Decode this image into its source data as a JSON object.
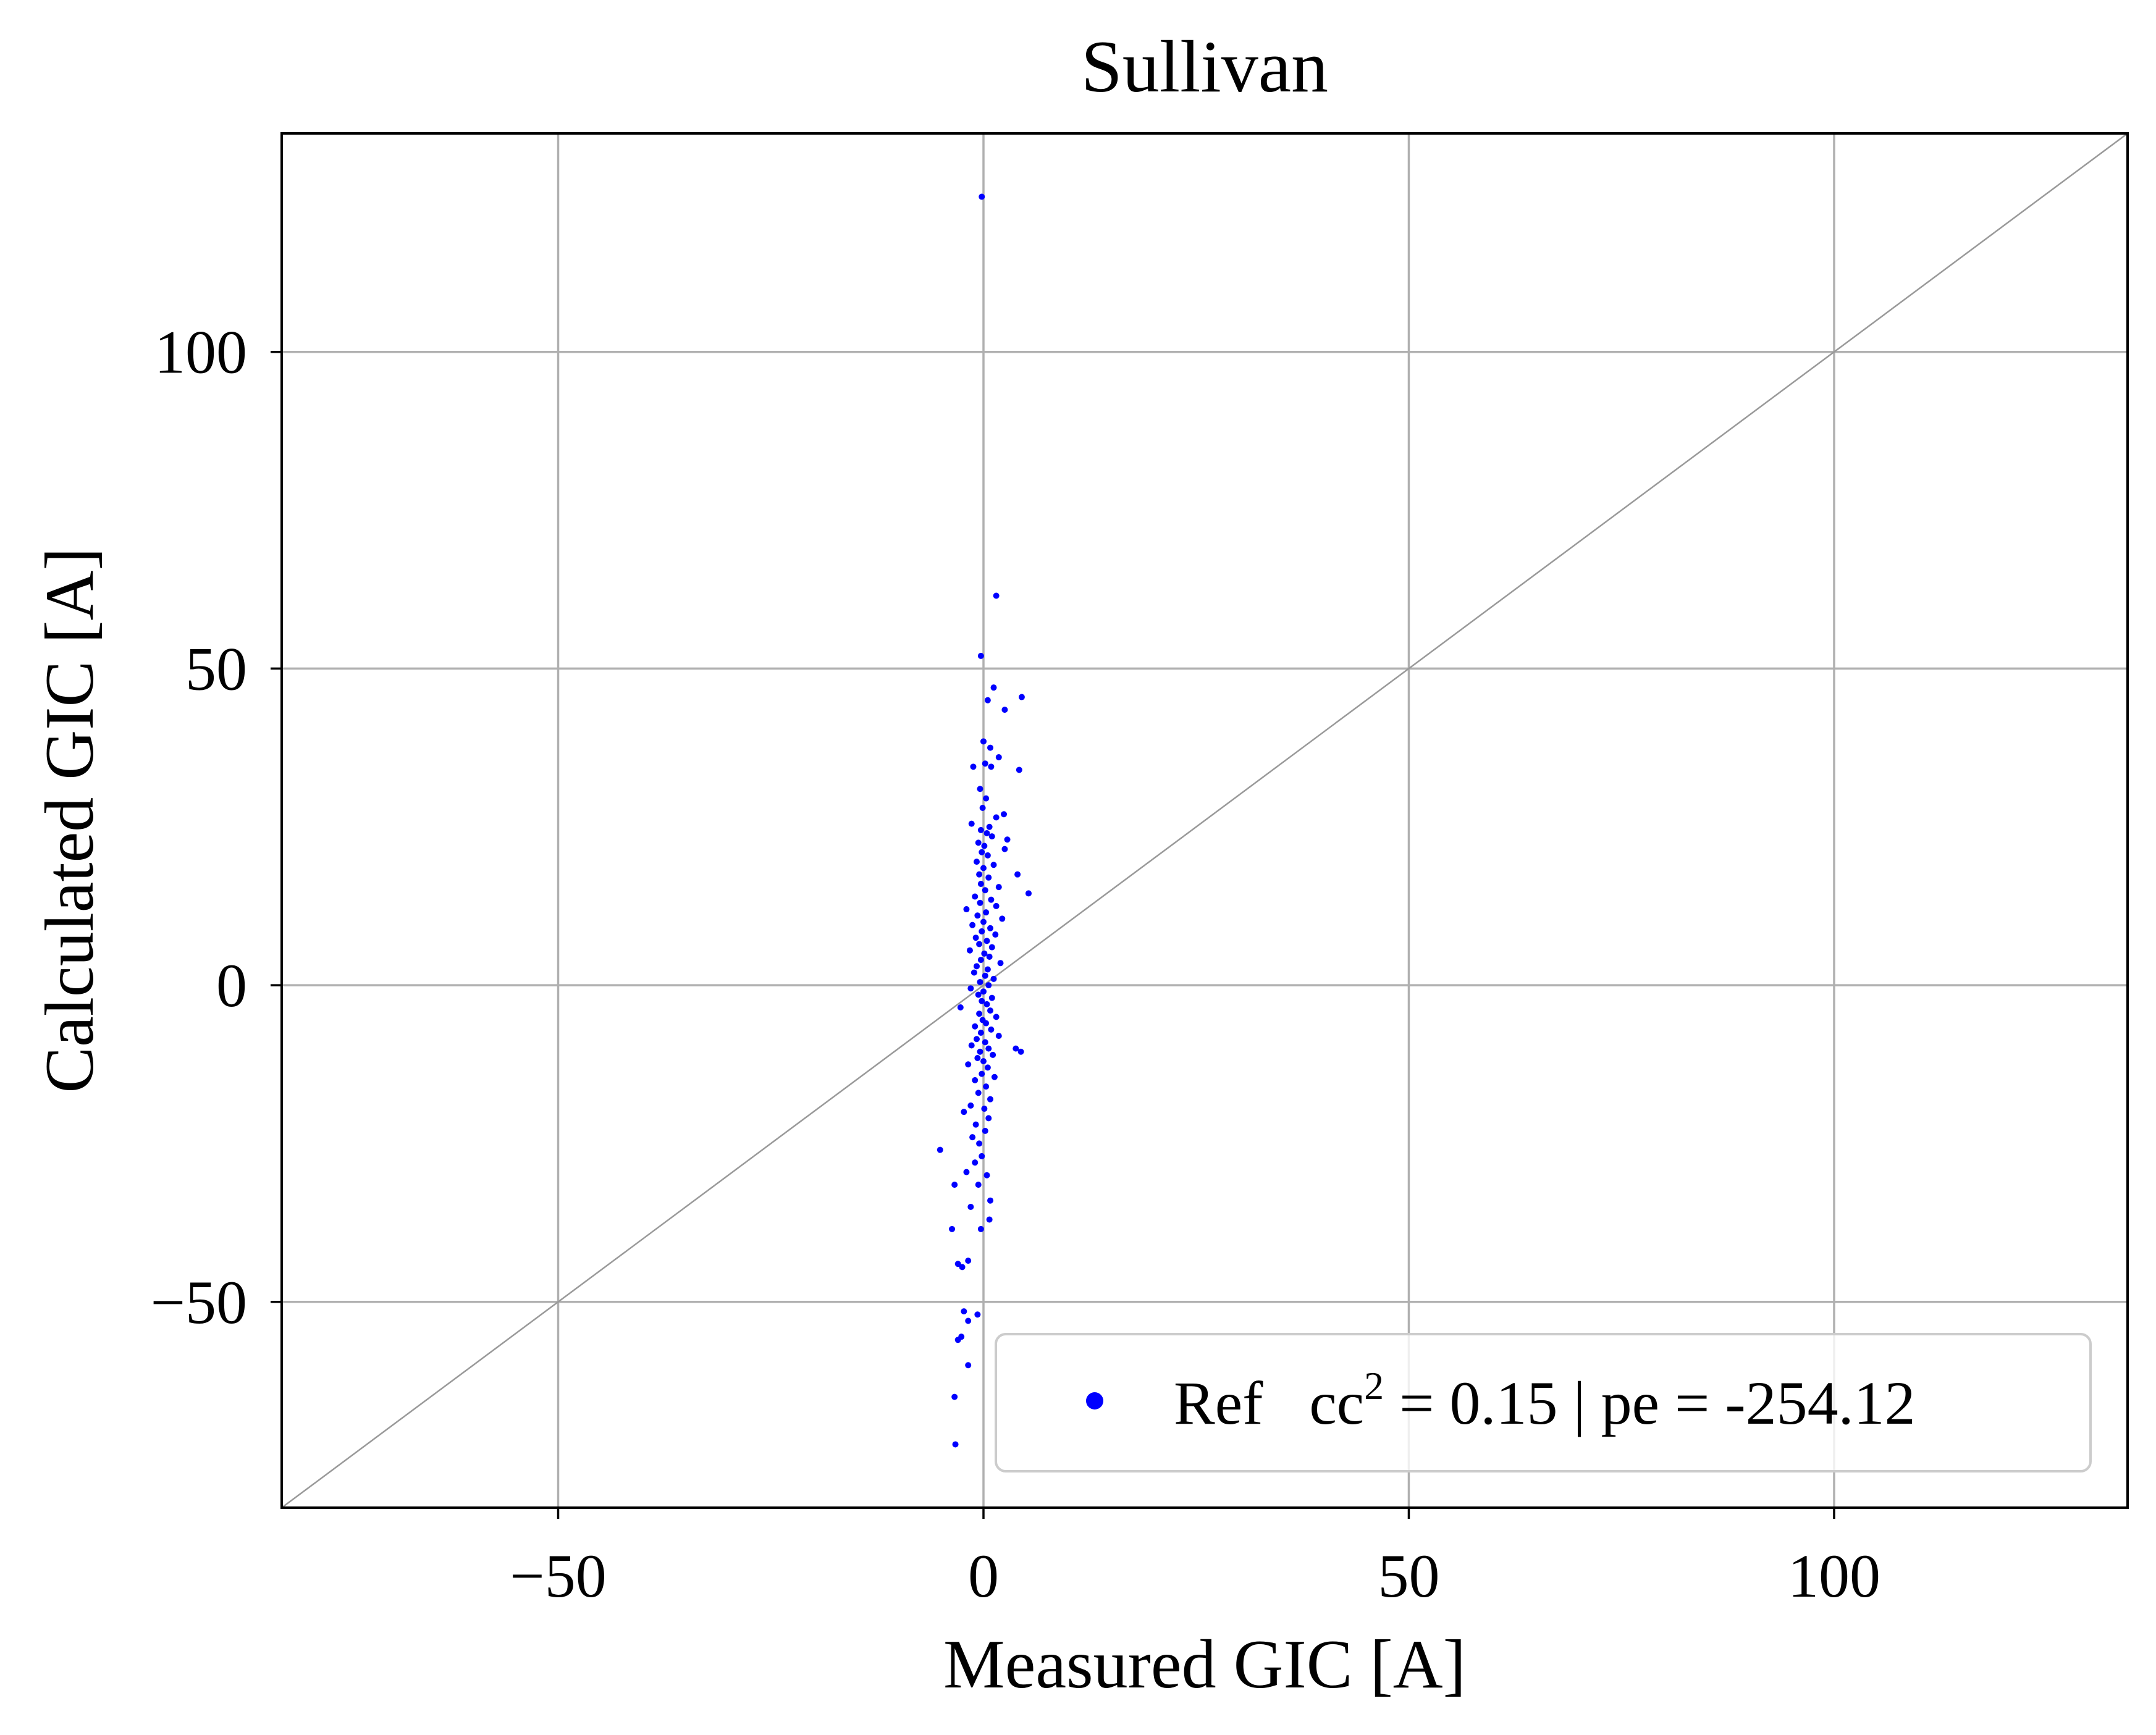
{
  "chart_data": {
    "type": "scatter",
    "title": "Sullivan",
    "xlabel": "Measured GIC [A]",
    "ylabel": "Calculated GIC [A]",
    "xlim": [
      -82.5,
      134.5
    ],
    "ylim": [
      -82.5,
      134.5
    ],
    "xticks": [
      -50,
      0,
      50,
      100
    ],
    "yticks": [
      -50,
      0,
      50,
      100
    ],
    "xtick_labels": [
      "−50",
      "0",
      "50",
      "100"
    ],
    "ytick_labels": [
      "−50",
      "0",
      "50",
      "100"
    ],
    "grid": true,
    "legend_position": "lower-right",
    "reference_line": {
      "type": "identity",
      "color": "#999999"
    },
    "series": [
      {
        "name": "Ref   cc² = 0.15 | pe = -254.12",
        "legend_main": "Ref   cc",
        "legend_sup": "2",
        "legend_tail": " = 0.15 | pe = -254.12",
        "color": "#0000ff",
        "points": [
          [
            -0.2,
            124.5
          ],
          [
            1.5,
            61.5
          ],
          [
            -0.3,
            52.0
          ],
          [
            1.2,
            47.0
          ],
          [
            4.5,
            45.5
          ],
          [
            0.5,
            45.0
          ],
          [
            2.5,
            43.5
          ],
          [
            0.0,
            38.5
          ],
          [
            0.8,
            37.5
          ],
          [
            1.8,
            36.0
          ],
          [
            -1.2,
            34.5
          ],
          [
            0.2,
            35.0
          ],
          [
            0.9,
            34.5
          ],
          [
            4.2,
            34.0
          ],
          [
            -0.4,
            31.0
          ],
          [
            0.3,
            29.5
          ],
          [
            -0.1,
            28.0
          ],
          [
            2.4,
            27.0
          ],
          [
            1.5,
            26.5
          ],
          [
            -1.4,
            25.5
          ],
          [
            0.7,
            25.0
          ],
          [
            -0.3,
            24.5
          ],
          [
            0.4,
            24.0
          ],
          [
            1.0,
            23.5
          ],
          [
            2.8,
            23.0
          ],
          [
            -0.6,
            22.5
          ],
          [
            0.1,
            22.0
          ],
          [
            2.5,
            21.5
          ],
          [
            -0.2,
            21.0
          ],
          [
            0.5,
            20.5
          ],
          [
            -0.8,
            19.5
          ],
          [
            1.2,
            19.0
          ],
          [
            0.0,
            18.5
          ],
          [
            -0.5,
            17.5
          ],
          [
            0.6,
            17.0
          ],
          [
            4.0,
            17.5
          ],
          [
            -0.3,
            16.0
          ],
          [
            1.8,
            15.5
          ],
          [
            0.2,
            15.0
          ],
          [
            5.3,
            14.5
          ],
          [
            -1.0,
            14.0
          ],
          [
            0.9,
            13.5
          ],
          [
            -0.4,
            13.0
          ],
          [
            1.5,
            12.5
          ],
          [
            -2.0,
            12.0
          ],
          [
            0.3,
            11.5
          ],
          [
            -0.7,
            11.0
          ],
          [
            2.2,
            10.5
          ],
          [
            0.0,
            10.0
          ],
          [
            -1.3,
            9.5
          ],
          [
            0.8,
            9.0
          ],
          [
            -0.2,
            8.5
          ],
          [
            1.4,
            8.0
          ],
          [
            -0.9,
            7.5
          ],
          [
            0.4,
            7.0
          ],
          [
            -0.5,
            6.5
          ],
          [
            1.0,
            6.0
          ],
          [
            -1.6,
            5.5
          ],
          [
            0.1,
            5.0
          ],
          [
            0.7,
            4.5
          ],
          [
            -0.3,
            4.0
          ],
          [
            2.0,
            3.5
          ],
          [
            -0.8,
            3.0
          ],
          [
            0.5,
            2.5
          ],
          [
            -1.1,
            2.0
          ],
          [
            0.2,
            1.5
          ],
          [
            1.2,
            1.0
          ],
          [
            -0.4,
            0.5
          ],
          [
            0.6,
            0.0
          ],
          [
            -1.5,
            -0.5
          ],
          [
            0.0,
            -1.0
          ],
          [
            -0.6,
            -1.5
          ],
          [
            1.0,
            -2.0
          ],
          [
            -0.2,
            -2.5
          ],
          [
            0.4,
            -3.0
          ],
          [
            -2.7,
            -3.5
          ],
          [
            0.8,
            -4.0
          ],
          [
            -0.5,
            -4.5
          ],
          [
            1.5,
            -5.0
          ],
          [
            -0.1,
            -5.5
          ],
          [
            0.3,
            -6.0
          ],
          [
            -1.0,
            -6.5
          ],
          [
            0.9,
            -7.0
          ],
          [
            -0.3,
            -7.5
          ],
          [
            1.8,
            -8.0
          ],
          [
            -0.8,
            -8.5
          ],
          [
            0.2,
            -9.0
          ],
          [
            -1.4,
            -9.5
          ],
          [
            0.6,
            -10.0
          ],
          [
            3.8,
            -10.0
          ],
          [
            4.4,
            -10.5
          ],
          [
            -0.4,
            -10.5
          ],
          [
            1.1,
            -11.0
          ],
          [
            -0.7,
            -11.5
          ],
          [
            0.0,
            -12.0
          ],
          [
            -1.8,
            -12.5
          ],
          [
            0.5,
            -13.0
          ],
          [
            -0.2,
            -14.0
          ],
          [
            1.3,
            -14.5
          ],
          [
            -1.0,
            -15.0
          ],
          [
            0.3,
            -16.0
          ],
          [
            -0.6,
            -17.0
          ],
          [
            0.8,
            -18.0
          ],
          [
            -1.5,
            -19.0
          ],
          [
            0.1,
            -19.5
          ],
          [
            -2.3,
            -20.0
          ],
          [
            0.6,
            -21.0
          ],
          [
            -0.9,
            -22.0
          ],
          [
            0.2,
            -23.0
          ],
          [
            -1.3,
            -24.0
          ],
          [
            -0.5,
            -25.0
          ],
          [
            -5.1,
            -26.0
          ],
          [
            -0.2,
            -27.0
          ],
          [
            -1.0,
            -28.0
          ],
          [
            -2.0,
            -29.5
          ],
          [
            0.4,
            -30.0
          ],
          [
            -0.6,
            -31.5
          ],
          [
            -3.4,
            -31.5
          ],
          [
            0.8,
            -34.0
          ],
          [
            -1.5,
            -35.0
          ],
          [
            0.7,
            -37.0
          ],
          [
            -3.7,
            -38.5
          ],
          [
            -0.3,
            -38.5
          ],
          [
            -1.8,
            -43.5
          ],
          [
            -3.0,
            -44.0
          ],
          [
            -2.5,
            -44.5
          ],
          [
            -2.3,
            -51.5
          ],
          [
            -0.7,
            -52.0
          ],
          [
            -1.8,
            -53.0
          ],
          [
            -2.6,
            -55.5
          ],
          [
            -3.0,
            -56.0
          ],
          [
            -1.8,
            -60.0
          ],
          [
            -3.4,
            -65.0
          ],
          [
            -3.3,
            -72.5
          ]
        ]
      }
    ]
  }
}
